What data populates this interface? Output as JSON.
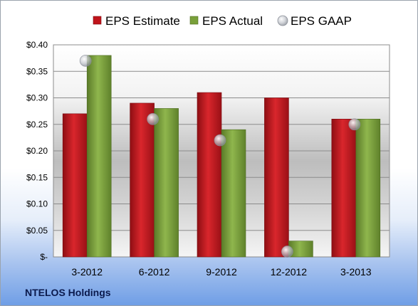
{
  "chart_data": {
    "type": "bar",
    "categories": [
      "3-2012",
      "6-2012",
      "9-2012",
      "12-2012",
      "3-2013"
    ],
    "series": [
      {
        "name": "EPS Estimate",
        "kind": "bar",
        "color": "#c0141b",
        "values": [
          0.27,
          0.29,
          0.31,
          0.3,
          0.26
        ]
      },
      {
        "name": "EPS Actual",
        "kind": "bar",
        "color": "#79a03a",
        "values": [
          0.38,
          0.28,
          0.24,
          0.03,
          0.26
        ]
      },
      {
        "name": "EPS GAAP",
        "kind": "marker",
        "color": "#b8bcc4",
        "values": [
          0.37,
          0.26,
          0.22,
          0.01,
          0.25
        ]
      }
    ],
    "ylim": [
      0,
      0.4
    ],
    "yticks": [
      0,
      0.05,
      0.1,
      0.15,
      0.2,
      0.25,
      0.3,
      0.35,
      0.4
    ],
    "ytick_labels": [
      "$-",
      "$0.05",
      "$0.10",
      "$0.15",
      "$0.20",
      "$0.25",
      "$0.30",
      "$0.35",
      "$0.40"
    ],
    "grid": true,
    "legend_position": "top"
  },
  "footer": {
    "company": "NTELOS Holdings"
  }
}
